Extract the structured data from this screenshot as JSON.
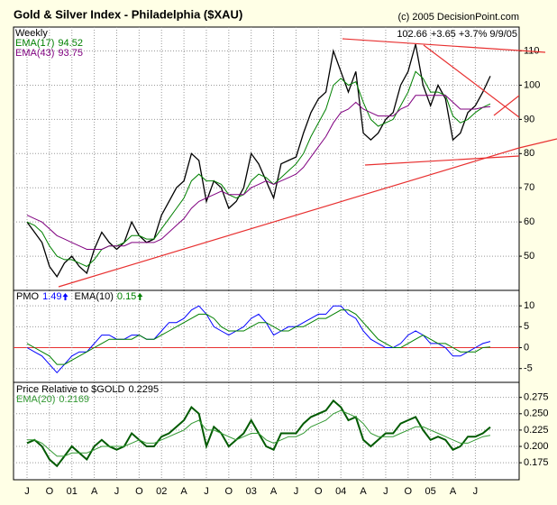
{
  "chart_data": [
    {
      "type": "line",
      "title": "Gold & Silver Index - Philadelphia ($XAU)",
      "credit": "(c) 2005 DecisionPoint.com",
      "subtitle": "Weekly",
      "quote_change": "+3.65 +3.7% 9/9/05",
      "categories": [
        "J",
        null,
        null,
        "O",
        null,
        null,
        "01",
        null,
        null,
        "A",
        null,
        null,
        "J",
        null,
        null,
        "O",
        null,
        null,
        "02",
        null,
        null,
        "A",
        null,
        null,
        "J",
        null,
        null,
        "O",
        null,
        null,
        "03",
        null,
        null,
        "A",
        null,
        null,
        "J",
        null,
        null,
        "O",
        null,
        null,
        "04",
        null,
        null,
        "A",
        null,
        null,
        "J",
        null,
        null,
        "O",
        null,
        null,
        "05",
        null,
        null,
        "A",
        null,
        null,
        "J",
        null,
        null
      ],
      "series": [
        {
          "name": "$XAU",
          "color": "#000000",
          "values": [
            60,
            57,
            54,
            47,
            44,
            48,
            50,
            47,
            45,
            52,
            57,
            54,
            52,
            54,
            60,
            56,
            54,
            55,
            62,
            66,
            70,
            72,
            80,
            78,
            66,
            72,
            70,
            64,
            66,
            70,
            80,
            77,
            72,
            67,
            77,
            78,
            79,
            86,
            92,
            96,
            98,
            110,
            104,
            98,
            104,
            86,
            84,
            86,
            90,
            92,
            100,
            104,
            112,
            100,
            94,
            100,
            96,
            84,
            86,
            92,
            94,
            98,
            102.66
          ]
        },
        {
          "name": "EMA(17)",
          "color": "#008000",
          "values": [
            60,
            59,
            57,
            53,
            50,
            49,
            49,
            48,
            47,
            49,
            52,
            53,
            53,
            54,
            56,
            56,
            55,
            55,
            58,
            61,
            64,
            67,
            72,
            74,
            72,
            72,
            71,
            68,
            67,
            68,
            72,
            74,
            73,
            71,
            73,
            75,
            77,
            80,
            85,
            89,
            93,
            100,
            102,
            100,
            101,
            95,
            90,
            88,
            89,
            90,
            94,
            98,
            104,
            102,
            98,
            98,
            97,
            91,
            89,
            90,
            92,
            93.5,
            94.52
          ]
        },
        {
          "name": "EMA(43)",
          "color": "#800080",
          "values": [
            62,
            61,
            60,
            58,
            56,
            55,
            54,
            53,
            52,
            52,
            52,
            53,
            53,
            53,
            54,
            54,
            54,
            54,
            55,
            57,
            59,
            61,
            64,
            66,
            67,
            68,
            69,
            68,
            68,
            68,
            70,
            71,
            72,
            71,
            72,
            73,
            74,
            76,
            79,
            82,
            85,
            89,
            92,
            93,
            95,
            93,
            92,
            91,
            91,
            91,
            93,
            94,
            97,
            97,
            97,
            97,
            97,
            95,
            93,
            93,
            93,
            93.5,
            93.75
          ]
        }
      ],
      "ylim": [
        40,
        117
      ],
      "yticks": [
        50,
        60,
        70,
        80,
        90,
        100,
        110
      ],
      "grid": true
    },
    {
      "type": "line",
      "categories": [
        "J",
        null,
        null,
        "O",
        null,
        null,
        "01",
        null,
        null,
        "A",
        null,
        null,
        "J",
        null,
        null,
        "O",
        null,
        null,
        "02",
        null,
        null,
        "A",
        null,
        null,
        "J",
        null,
        null,
        "O",
        null,
        null,
        "03",
        null,
        null,
        "A",
        null,
        null,
        "J",
        null,
        null,
        "O",
        null,
        null,
        "04",
        null,
        null,
        "A",
        null,
        null,
        "J",
        null,
        null,
        "O",
        null,
        null,
        "05",
        null,
        null,
        "A",
        null,
        null,
        "J",
        null,
        null
      ],
      "series": [
        {
          "name": "PMO",
          "color": "#0000ff",
          "values": [
            0,
            -1,
            -2,
            -4,
            -6,
            -4,
            -2,
            -1,
            -1,
            1,
            3,
            3,
            2,
            2,
            3,
            3,
            2,
            2,
            4,
            6,
            6,
            7,
            9,
            10,
            8,
            5,
            4,
            3,
            4,
            5,
            7,
            8,
            6,
            3,
            4,
            5,
            5,
            6,
            7,
            8,
            8,
            10,
            10,
            8,
            7,
            4,
            2,
            1,
            0,
            0,
            1,
            3,
            4,
            3,
            1,
            1,
            0,
            -2,
            -2,
            -1,
            0,
            1,
            1.49
          ]
        },
        {
          "name": "EMA(10)",
          "color": "#008000",
          "values": [
            1,
            0,
            -1,
            -2,
            -4,
            -4,
            -3,
            -2,
            -1,
            0,
            1,
            2,
            2,
            2,
            2,
            3,
            2,
            2,
            3,
            4,
            5,
            6,
            7,
            8,
            8,
            7,
            5,
            4,
            4,
            4,
            5,
            6,
            6,
            5,
            4,
            4,
            5,
            5,
            6,
            7,
            7,
            8,
            9,
            9,
            8,
            6,
            4,
            2,
            1,
            0,
            0,
            1,
            2,
            3,
            2,
            1,
            1,
            0,
            -1,
            -1,
            -1,
            0,
            0.15
          ]
        }
      ],
      "ylim": [
        -8.3,
        13.7
      ],
      "yticks": [
        -5,
        0,
        5,
        10
      ],
      "grid": true
    },
    {
      "type": "line",
      "categories": [
        "J",
        null,
        null,
        "O",
        null,
        null,
        "01",
        null,
        null,
        "A",
        null,
        null,
        "J",
        null,
        null,
        "O",
        null,
        null,
        "02",
        null,
        null,
        "A",
        null,
        null,
        "J",
        null,
        null,
        "O",
        null,
        null,
        "03",
        null,
        null,
        "A",
        null,
        null,
        "J",
        null,
        null,
        "O",
        null,
        null,
        "04",
        null,
        null,
        "A",
        null,
        null,
        "J",
        null,
        null,
        "O",
        null,
        null,
        "05",
        null,
        null,
        "A",
        null,
        null,
        "J",
        null,
        null
      ],
      "series": [
        {
          "name": "Price Relative to $GOLD",
          "color": "#005a00",
          "values": [
            0.205,
            0.21,
            0.2,
            0.18,
            0.17,
            0.185,
            0.2,
            0.19,
            0.18,
            0.2,
            0.21,
            0.2,
            0.195,
            0.2,
            0.22,
            0.21,
            0.2,
            0.2,
            0.215,
            0.22,
            0.23,
            0.24,
            0.26,
            0.25,
            0.2,
            0.23,
            0.22,
            0.2,
            0.21,
            0.22,
            0.24,
            0.22,
            0.2,
            0.195,
            0.22,
            0.22,
            0.22,
            0.235,
            0.245,
            0.25,
            0.255,
            0.27,
            0.26,
            0.24,
            0.245,
            0.21,
            0.2,
            0.21,
            0.22,
            0.22,
            0.235,
            0.24,
            0.245,
            0.225,
            0.21,
            0.215,
            0.21,
            0.195,
            0.2,
            0.215,
            0.215,
            0.22,
            0.2295
          ]
        },
        {
          "name": "EMA(20)",
          "color": "#339933",
          "values": [
            0.21,
            0.21,
            0.205,
            0.195,
            0.185,
            0.185,
            0.19,
            0.19,
            0.19,
            0.195,
            0.2,
            0.2,
            0.2,
            0.2,
            0.205,
            0.21,
            0.205,
            0.205,
            0.21,
            0.215,
            0.22,
            0.225,
            0.235,
            0.24,
            0.225,
            0.225,
            0.22,
            0.215,
            0.21,
            0.215,
            0.22,
            0.22,
            0.21,
            0.205,
            0.21,
            0.215,
            0.215,
            0.22,
            0.23,
            0.235,
            0.24,
            0.25,
            0.255,
            0.25,
            0.245,
            0.235,
            0.22,
            0.215,
            0.215,
            0.215,
            0.22,
            0.225,
            0.23,
            0.23,
            0.225,
            0.22,
            0.215,
            0.21,
            0.205,
            0.205,
            0.21,
            0.215,
            0.2169
          ]
        }
      ],
      "ylim": [
        0.149,
        0.298
      ],
      "yticks": [
        {
          "value": 0.175,
          "label": "0.175"
        },
        {
          "value": 0.2,
          "label": "0.200"
        },
        {
          "value": 0.225,
          "label": "0.225"
        },
        {
          "value": 0.25,
          "label": "0.250"
        },
        {
          "value": 0.275,
          "label": "0.275"
        }
      ],
      "grid": true
    }
  ]
}
